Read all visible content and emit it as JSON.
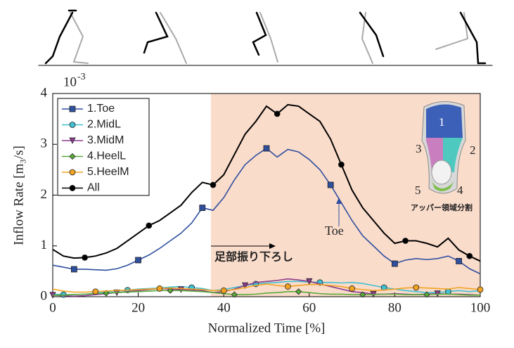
{
  "chart_data": {
    "type": "line",
    "xlabel": "Normalized Time [%]",
    "ylabel": "Inflow Rate [m₃/s]",
    "y_multiplier": "10",
    "y_exponent": "-3",
    "xlim": [
      0,
      100
    ],
    "ylim": [
      0,
      4
    ],
    "xticks": [
      0,
      20,
      40,
      60,
      80,
      100
    ],
    "yticks": [
      0,
      1,
      2,
      3,
      4
    ],
    "shaded_region": [
      37,
      100
    ],
    "shaded_color": "#fadccb",
    "annotations": [
      "足部振り下ろし",
      "Toe"
    ],
    "inset": {
      "labels": [
        "1",
        "2",
        "3",
        "4",
        "5"
      ],
      "caption": "アッパー領域分割"
    },
    "x": [
      0,
      2.5,
      5,
      7.5,
      10,
      12.5,
      15,
      17.5,
      20,
      22.5,
      25,
      27.5,
      30,
      32.5,
      35,
      37.5,
      40,
      42.5,
      45,
      47.5,
      50,
      52.5,
      55,
      57.5,
      60,
      62.5,
      65,
      67.5,
      70,
      72.5,
      75,
      77.5,
      80,
      82.5,
      85,
      87.5,
      90,
      92.5,
      95,
      97.5,
      100
    ],
    "series": [
      {
        "name": "1.Toe",
        "color": "#2f4f9f",
        "marker": "square",
        "values": [
          0.62,
          0.58,
          0.54,
          0.54,
          0.53,
          0.52,
          0.55,
          0.62,
          0.72,
          0.82,
          0.95,
          1.1,
          1.25,
          1.45,
          1.75,
          1.7,
          1.95,
          2.3,
          2.6,
          2.78,
          2.92,
          2.75,
          2.9,
          2.85,
          2.7,
          2.5,
          2.2,
          1.85,
          1.5,
          1.2,
          1.0,
          0.8,
          0.65,
          0.72,
          0.75,
          0.73,
          0.75,
          0.8,
          0.7,
          0.55,
          0.45
        ]
      },
      {
        "name": "2.MidL",
        "color": "#40c0d2",
        "marker": "circle",
        "values": [
          0.05,
          0.04,
          0.04,
          0.05,
          0.07,
          0.09,
          0.11,
          0.13,
          0.15,
          0.16,
          0.17,
          0.19,
          0.2,
          0.18,
          0.16,
          0.12,
          0.14,
          0.18,
          0.22,
          0.25,
          0.27,
          0.28,
          0.3,
          0.3,
          0.29,
          0.28,
          0.28,
          0.27,
          0.28,
          0.26,
          0.22,
          0.18,
          0.15,
          0.12,
          0.1,
          0.08,
          0.08,
          0.1,
          0.12,
          0.1,
          0.12
        ]
      },
      {
        "name": "3.MidM",
        "color": "#8c3c8e",
        "marker": "triangle",
        "values": [
          0.03,
          0.02,
          0.01,
          0.02,
          0.04,
          0.06,
          0.08,
          0.1,
          0.12,
          0.14,
          0.16,
          0.15,
          0.14,
          0.13,
          0.12,
          0.08,
          0.1,
          0.15,
          0.22,
          0.28,
          0.3,
          0.32,
          0.35,
          0.33,
          0.3,
          0.25,
          0.2,
          0.15,
          0.1,
          0.08,
          0.05,
          0.05,
          0.06,
          0.05,
          0.04,
          0.05,
          0.06,
          0.05,
          0.05,
          0.04,
          0.03
        ]
      },
      {
        "name": "4.HeelL",
        "color": "#5aab3c",
        "marker": "diamond",
        "values": [
          0.03,
          0.03,
          0.04,
          0.05,
          0.06,
          0.07,
          0.08,
          0.09,
          0.1,
          0.11,
          0.12,
          0.12,
          0.12,
          0.11,
          0.1,
          0.08,
          0.06,
          0.04,
          0.04,
          0.05,
          0.07,
          0.08,
          0.1,
          0.1,
          0.08,
          0.06,
          0.05,
          0.05,
          0.04,
          0.04,
          0.04,
          0.05,
          0.05,
          0.04,
          0.04,
          0.04,
          0.05,
          0.05,
          0.04,
          0.03,
          0.03
        ]
      },
      {
        "name": "5.HeelM",
        "color": "#f2a322",
        "marker": "circle",
        "values": [
          0.15,
          0.11,
          0.09,
          0.09,
          0.1,
          0.11,
          0.12,
          0.13,
          0.14,
          0.15,
          0.16,
          0.17,
          0.16,
          0.15,
          0.14,
          0.12,
          0.12,
          0.14,
          0.18,
          0.22,
          0.25,
          0.22,
          0.2,
          0.22,
          0.24,
          0.24,
          0.22,
          0.2,
          0.16,
          0.14,
          0.12,
          0.13,
          0.15,
          0.17,
          0.18,
          0.17,
          0.16,
          0.15,
          0.18,
          0.16,
          0.14
        ]
      },
      {
        "name": "All",
        "color": "#000000",
        "marker": "circle",
        "values": [
          0.93,
          0.8,
          0.76,
          0.77,
          0.8,
          0.86,
          0.95,
          1.1,
          1.25,
          1.4,
          1.5,
          1.65,
          1.8,
          2.05,
          2.25,
          2.2,
          2.4,
          2.8,
          3.2,
          3.45,
          3.75,
          3.6,
          3.78,
          3.75,
          3.6,
          3.45,
          3.1,
          2.6,
          2.1,
          1.75,
          1.5,
          1.25,
          1.05,
          1.1,
          1.1,
          1.05,
          0.98,
          1.15,
          0.92,
          0.8,
          0.7
        ]
      }
    ]
  }
}
